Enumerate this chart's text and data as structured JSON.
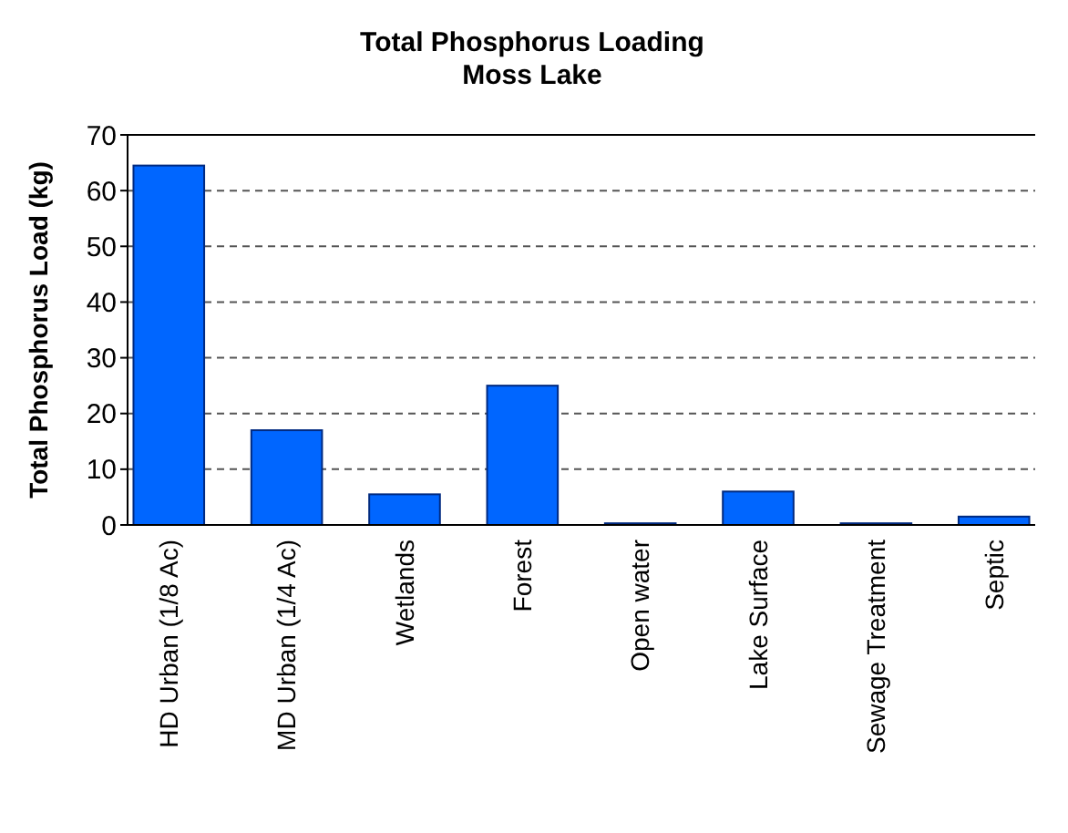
{
  "chart_data": {
    "type": "bar",
    "title": "Total Phosphorus Loading\nMoss Lake",
    "ylabel": "Total Phosphorus Load (kg)",
    "categories": [
      "HD Urban (1/8 Ac)",
      "MD Urban (1/4 Ac)",
      "Wetlands",
      "Forest",
      "Open water",
      "Lake Surface",
      "Sewage Treatment",
      "Septic"
    ],
    "values": [
      64.5,
      17,
      5.5,
      25,
      0.3,
      6,
      0.3,
      1.5
    ],
    "color": "#0066ff",
    "ylim": [
      0,
      70
    ],
    "yticks": [
      0,
      10,
      20,
      30,
      40,
      50,
      60,
      70
    ],
    "grid": "y"
  }
}
